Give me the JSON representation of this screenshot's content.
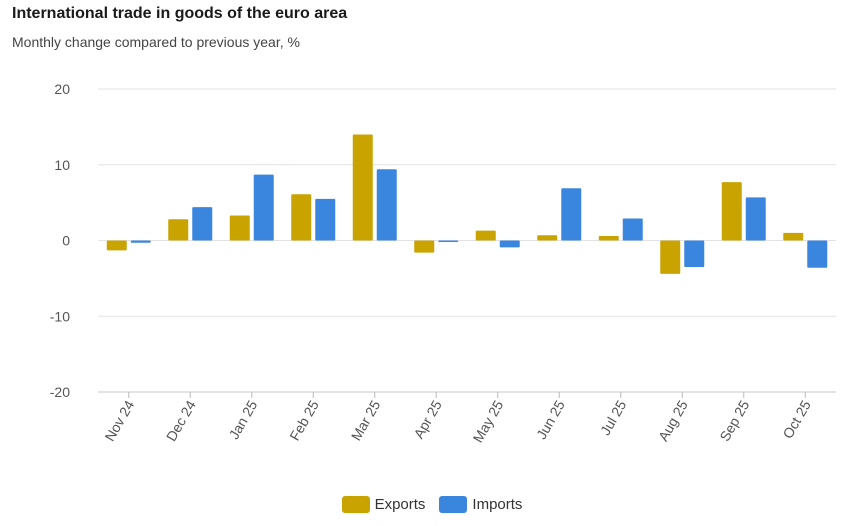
{
  "chart_data": {
    "type": "bar",
    "title": "International trade in goods of the euro area",
    "subtitle": "Monthly change compared to previous year, %",
    "categories": [
      "Nov 24",
      "Dec 24",
      "Jan 25",
      "Feb 25",
      "Mar 25",
      "Apr 25",
      "May 25",
      "Jun 25",
      "Jul 25",
      "Aug 25",
      "Sep 25",
      "Oct 25"
    ],
    "series": [
      {
        "name": "Exports",
        "color": "#c9a400",
        "values": [
          -1.3,
          2.8,
          3.3,
          6.1,
          14.0,
          -1.6,
          1.3,
          0.7,
          0.6,
          -4.4,
          7.7,
          1.0
        ]
      },
      {
        "name": "Imports",
        "color": "#3a86df",
        "values": [
          -0.3,
          4.4,
          8.7,
          5.5,
          9.4,
          -0.2,
          -0.9,
          6.9,
          2.9,
          -3.5,
          5.7,
          -3.6
        ]
      }
    ],
    "yticks": [
      "20",
      "10",
      "0",
      "-10",
      "-20"
    ],
    "ylim": [
      -20,
      20
    ],
    "xlabel": "",
    "ylabel": "",
    "legend_position": "bottom-center",
    "grid": true
  }
}
